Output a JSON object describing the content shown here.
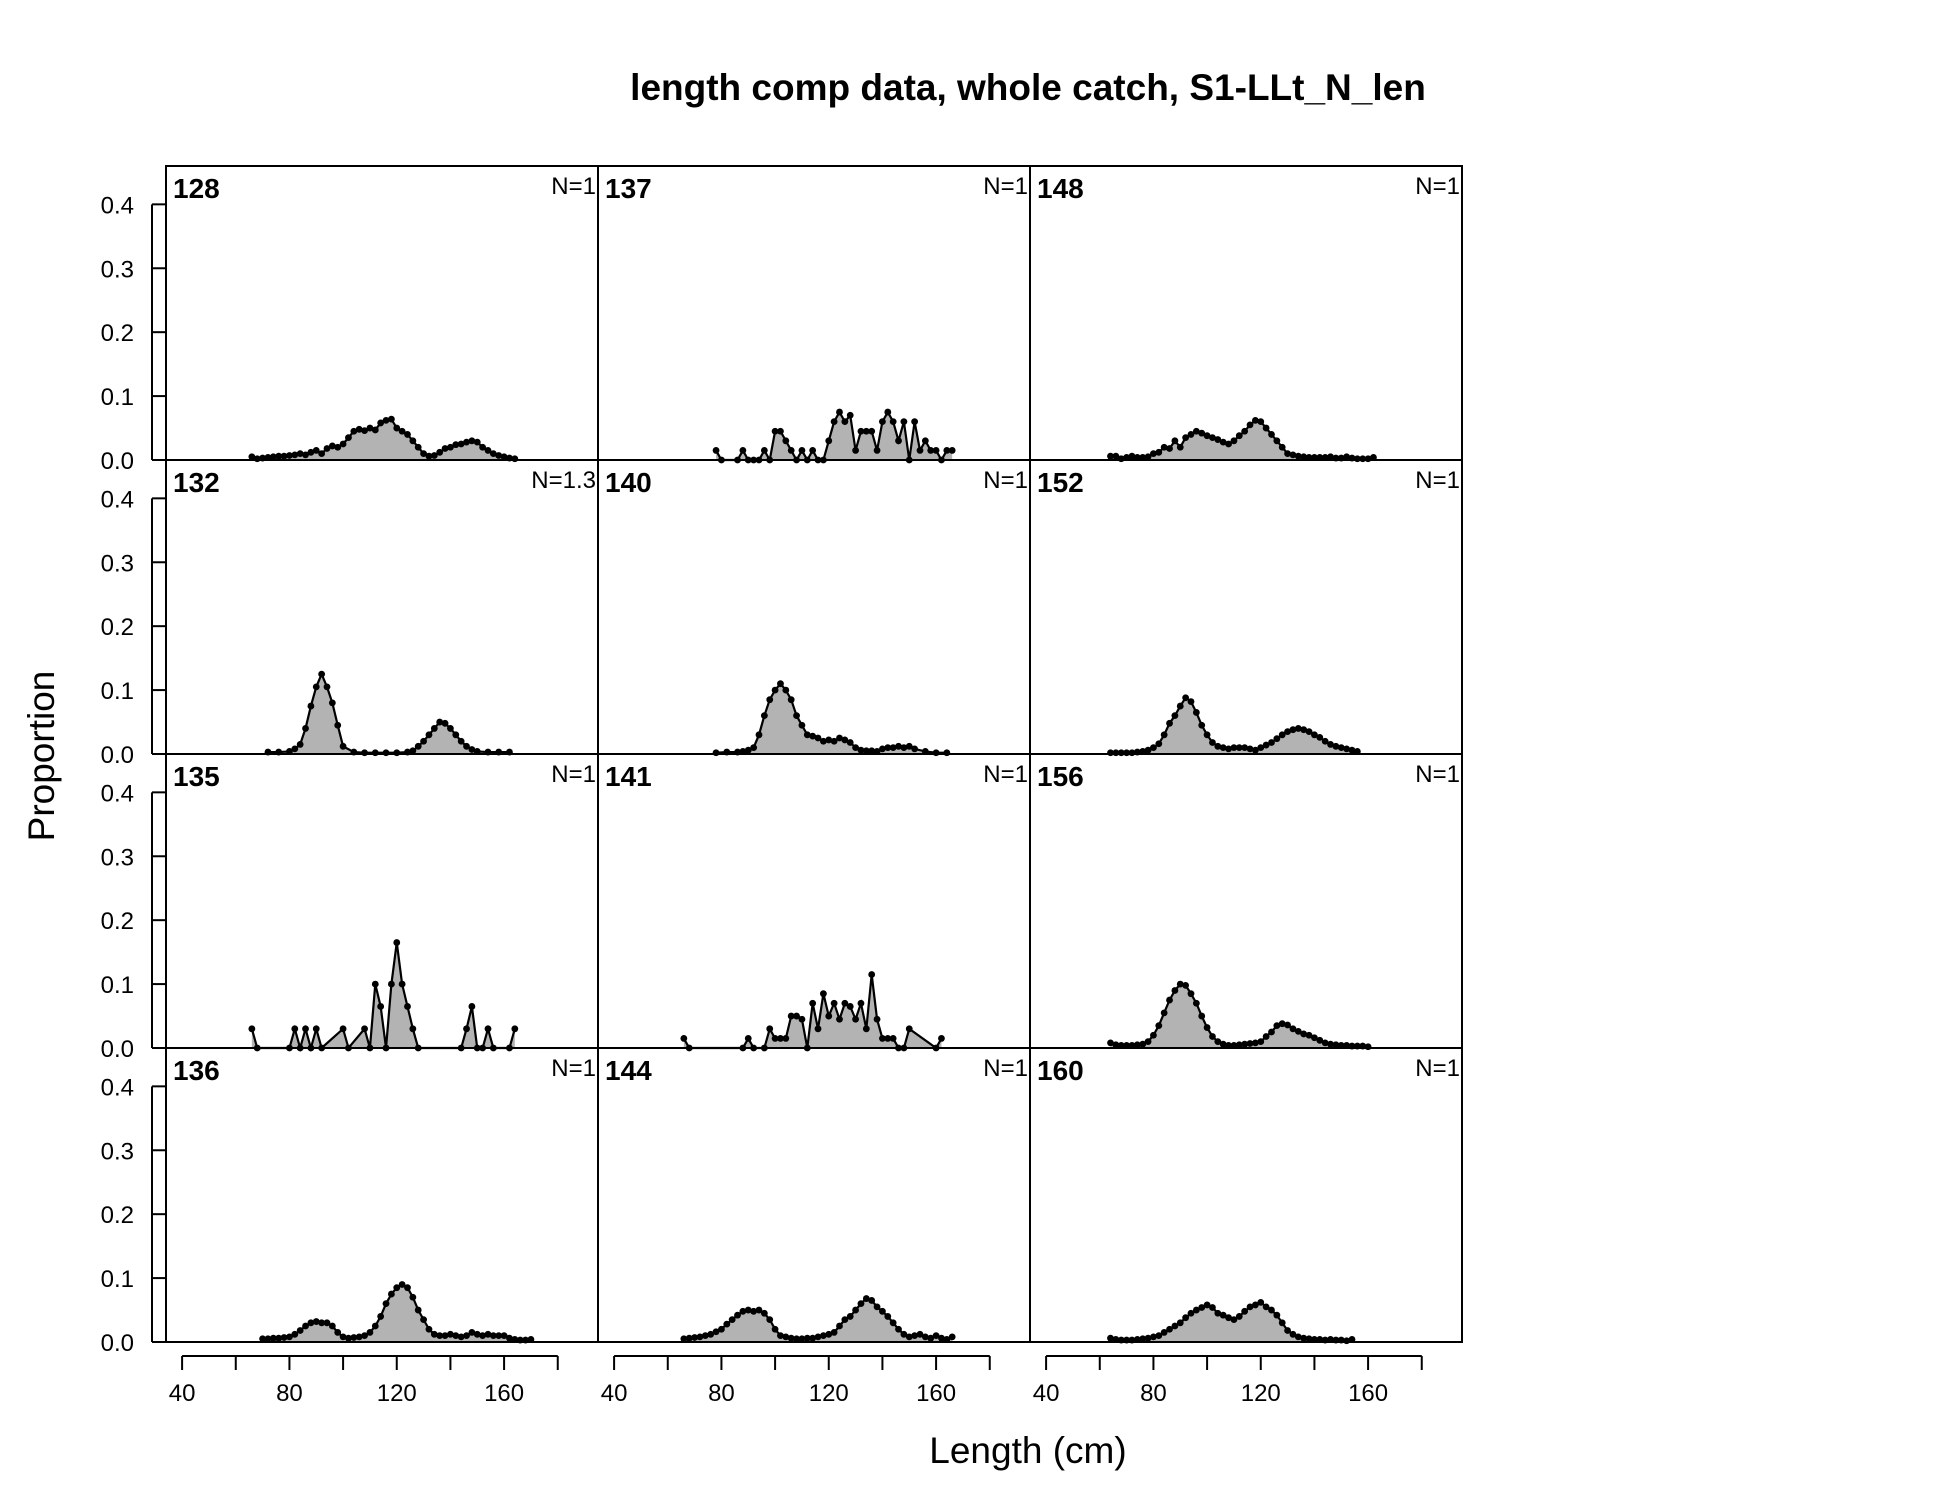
{
  "chart_data": {
    "type": "area",
    "title": "length comp data, whole catch, S1-LLt_N_len",
    "xlabel": "Length (cm)",
    "ylabel": "Proportion",
    "xlim": [
      34,
      195
    ],
    "ylim": [
      0,
      0.46
    ],
    "x_ticks": [
      40,
      60,
      80,
      100,
      120,
      140,
      160,
      180
    ],
    "x_tick_labels": [
      "40",
      "80",
      "120",
      "160"
    ],
    "x_tick_label_values": [
      40,
      80,
      120,
      160
    ],
    "y_ticks": [
      0.0,
      0.1,
      0.2,
      0.3,
      0.4
    ],
    "y_tick_labels": [
      "0.0",
      "0.1",
      "0.2",
      "0.3",
      "0.4"
    ],
    "layout": "4 rows x 3 columns, column-major",
    "fill_color": "#b3b3b3",
    "line_color": "#000000",
    "panels": [
      {
        "label": "128",
        "n": "N=1",
        "x": [
          66,
          68,
          70,
          72,
          74,
          76,
          78,
          80,
          82,
          84,
          86,
          88,
          90,
          92,
          94,
          96,
          98,
          100,
          102,
          104,
          106,
          108,
          110,
          112,
          114,
          116,
          118,
          120,
          122,
          124,
          126,
          128,
          130,
          132,
          134,
          136,
          138,
          140,
          142,
          144,
          146,
          148,
          150,
          152,
          154,
          156,
          158,
          160,
          162,
          164
        ],
        "y": [
          0.005,
          0.002,
          0.003,
          0.004,
          0.005,
          0.006,
          0.006,
          0.007,
          0.008,
          0.01,
          0.008,
          0.012,
          0.015,
          0.01,
          0.018,
          0.022,
          0.02,
          0.025,
          0.035,
          0.045,
          0.048,
          0.046,
          0.05,
          0.047,
          0.058,
          0.062,
          0.064,
          0.05,
          0.045,
          0.04,
          0.03,
          0.02,
          0.01,
          0.006,
          0.007,
          0.012,
          0.018,
          0.02,
          0.024,
          0.025,
          0.028,
          0.03,
          0.028,
          0.02,
          0.015,
          0.01,
          0.007,
          0.005,
          0.003,
          0.002
        ]
      },
      {
        "label": "132",
        "n": "N=1.3",
        "x": [
          72,
          76,
          80,
          82,
          84,
          86,
          88,
          90,
          92,
          94,
          96,
          98,
          100,
          104,
          108,
          112,
          116,
          120,
          124,
          126,
          128,
          130,
          132,
          134,
          136,
          138,
          140,
          142,
          144,
          146,
          148,
          150,
          154,
          158,
          162
        ],
        "y": [
          0.003,
          0.003,
          0.004,
          0.008,
          0.015,
          0.04,
          0.075,
          0.105,
          0.125,
          0.105,
          0.08,
          0.045,
          0.012,
          0.003,
          0.002,
          0.002,
          0.002,
          0.002,
          0.003,
          0.005,
          0.012,
          0.02,
          0.03,
          0.04,
          0.05,
          0.048,
          0.04,
          0.03,
          0.02,
          0.012,
          0.007,
          0.004,
          0.003,
          0.003,
          0.003
        ]
      },
      {
        "label": "135",
        "n": "N=1",
        "x": [
          66,
          68,
          80,
          82,
          84,
          86,
          88,
          90,
          92,
          100,
          102,
          108,
          110,
          112,
          114,
          116,
          118,
          120,
          122,
          124,
          126,
          128,
          144,
          146,
          148,
          150,
          152,
          154,
          156,
          162,
          164
        ],
        "y": [
          0.03,
          0,
          0,
          0.03,
          0,
          0.03,
          0,
          0.03,
          0,
          0.03,
          0,
          0.03,
          0,
          0.1,
          0.065,
          0,
          0.1,
          0.165,
          0.1,
          0.065,
          0.03,
          0,
          0,
          0.03,
          0.065,
          0,
          0,
          0.03,
          0,
          0,
          0.03
        ]
      },
      {
        "label": "136",
        "n": "N=1",
        "x": [
          70,
          72,
          74,
          76,
          78,
          80,
          82,
          84,
          86,
          88,
          90,
          92,
          94,
          96,
          98,
          100,
          102,
          104,
          106,
          108,
          110,
          112,
          114,
          116,
          118,
          120,
          122,
          124,
          126,
          128,
          130,
          132,
          134,
          136,
          138,
          140,
          142,
          144,
          146,
          148,
          150,
          152,
          154,
          156,
          158,
          160,
          162,
          164,
          166,
          168,
          170
        ],
        "y": [
          0.005,
          0.005,
          0.006,
          0.006,
          0.007,
          0.008,
          0.012,
          0.018,
          0.025,
          0.03,
          0.032,
          0.03,
          0.03,
          0.025,
          0.015,
          0.008,
          0.006,
          0.007,
          0.008,
          0.01,
          0.015,
          0.025,
          0.04,
          0.06,
          0.075,
          0.085,
          0.09,
          0.085,
          0.07,
          0.05,
          0.035,
          0.02,
          0.012,
          0.01,
          0.01,
          0.012,
          0.01,
          0.008,
          0.01,
          0.015,
          0.012,
          0.01,
          0.012,
          0.01,
          0.01,
          0.01,
          0.006,
          0.004,
          0.003,
          0.003,
          0.004
        ]
      },
      {
        "label": "137",
        "n": "N=1",
        "x": [
          78,
          80,
          86,
          88,
          90,
          92,
          94,
          96,
          98,
          100,
          102,
          104,
          106,
          108,
          110,
          112,
          114,
          116,
          118,
          120,
          122,
          124,
          126,
          128,
          130,
          132,
          134,
          136,
          138,
          140,
          142,
          144,
          146,
          148,
          150,
          152,
          154,
          156,
          158,
          160,
          162,
          164,
          166
        ],
        "y": [
          0.015,
          0,
          0,
          0.015,
          0,
          0,
          0,
          0.015,
          0,
          0.045,
          0.045,
          0.03,
          0.015,
          0,
          0.015,
          0,
          0.015,
          0,
          0,
          0.03,
          0.06,
          0.075,
          0.06,
          0.07,
          0.015,
          0.045,
          0.045,
          0.045,
          0.015,
          0.06,
          0.075,
          0.06,
          0.03,
          0.06,
          0,
          0.06,
          0.015,
          0.03,
          0.015,
          0.015,
          0,
          0.015,
          0.015
        ]
      },
      {
        "label": "140",
        "n": "N=1",
        "x": [
          78,
          82,
          86,
          88,
          90,
          92,
          94,
          96,
          98,
          100,
          102,
          104,
          106,
          108,
          110,
          112,
          114,
          116,
          118,
          120,
          122,
          124,
          126,
          128,
          130,
          132,
          134,
          136,
          138,
          140,
          142,
          144,
          146,
          148,
          150,
          152,
          156,
          160,
          164
        ],
        "y": [
          0.002,
          0.003,
          0.003,
          0.004,
          0.006,
          0.01,
          0.03,
          0.06,
          0.085,
          0.1,
          0.11,
          0.1,
          0.085,
          0.06,
          0.045,
          0.03,
          0.028,
          0.025,
          0.02,
          0.022,
          0.02,
          0.025,
          0.022,
          0.018,
          0.01,
          0.006,
          0.005,
          0.005,
          0.004,
          0.008,
          0.01,
          0.01,
          0.012,
          0.01,
          0.012,
          0.008,
          0.004,
          0.002,
          0.002
        ]
      },
      {
        "label": "141",
        "n": "N=1",
        "x": [
          66,
          68,
          88,
          90,
          92,
          96,
          98,
          100,
          102,
          104,
          106,
          108,
          110,
          112,
          114,
          116,
          118,
          120,
          122,
          124,
          126,
          128,
          130,
          132,
          134,
          136,
          138,
          140,
          142,
          144,
          146,
          148,
          150,
          160,
          162
        ],
        "y": [
          0.015,
          0,
          0,
          0.015,
          0,
          0,
          0.03,
          0.015,
          0.015,
          0.015,
          0.05,
          0.05,
          0.045,
          0,
          0.07,
          0.03,
          0.085,
          0.05,
          0.07,
          0.045,
          0.07,
          0.065,
          0.045,
          0.07,
          0.03,
          0.115,
          0.045,
          0.015,
          0.015,
          0.015,
          0,
          0,
          0.03,
          0,
          0.015
        ]
      },
      {
        "label": "144",
        "n": "N=1",
        "x": [
          66,
          68,
          70,
          72,
          74,
          76,
          78,
          80,
          82,
          84,
          86,
          88,
          90,
          92,
          94,
          96,
          98,
          100,
          102,
          104,
          106,
          108,
          110,
          112,
          114,
          116,
          118,
          120,
          122,
          124,
          126,
          128,
          130,
          132,
          134,
          136,
          138,
          140,
          142,
          144,
          146,
          148,
          150,
          152,
          154,
          156,
          158,
          160,
          162,
          164,
          166
        ],
        "y": [
          0.005,
          0.006,
          0.007,
          0.008,
          0.01,
          0.012,
          0.016,
          0.02,
          0.028,
          0.035,
          0.042,
          0.048,
          0.05,
          0.048,
          0.05,
          0.045,
          0.035,
          0.02,
          0.01,
          0.008,
          0.006,
          0.005,
          0.005,
          0.006,
          0.006,
          0.008,
          0.01,
          0.012,
          0.015,
          0.025,
          0.035,
          0.04,
          0.05,
          0.06,
          0.068,
          0.065,
          0.055,
          0.048,
          0.04,
          0.03,
          0.02,
          0.012,
          0.008,
          0.01,
          0.012,
          0.008,
          0.006,
          0.01,
          0.006,
          0.004,
          0.008
        ]
      },
      {
        "label": "148",
        "n": "N=1",
        "x": [
          64,
          66,
          68,
          70,
          72,
          74,
          76,
          78,
          80,
          82,
          84,
          86,
          88,
          90,
          92,
          94,
          96,
          98,
          100,
          102,
          104,
          106,
          108,
          110,
          112,
          114,
          116,
          118,
          120,
          122,
          124,
          126,
          128,
          130,
          132,
          134,
          136,
          138,
          140,
          142,
          144,
          146,
          148,
          150,
          152,
          154,
          156,
          158,
          160,
          162
        ],
        "y": [
          0.006,
          0.006,
          0.002,
          0.004,
          0.006,
          0.004,
          0.004,
          0.005,
          0.01,
          0.012,
          0.02,
          0.018,
          0.03,
          0.02,
          0.035,
          0.04,
          0.045,
          0.042,
          0.038,
          0.035,
          0.032,
          0.028,
          0.025,
          0.03,
          0.038,
          0.045,
          0.055,
          0.062,
          0.06,
          0.05,
          0.04,
          0.03,
          0.02,
          0.01,
          0.008,
          0.006,
          0.005,
          0.004,
          0.004,
          0.004,
          0.004,
          0.005,
          0.003,
          0.003,
          0.005,
          0.003,
          0.002,
          0.002,
          0.002,
          0.004
        ]
      },
      {
        "label": "152",
        "n": "N=1",
        "x": [
          64,
          66,
          68,
          70,
          72,
          74,
          76,
          78,
          80,
          82,
          84,
          86,
          88,
          90,
          92,
          94,
          96,
          98,
          100,
          102,
          104,
          106,
          108,
          110,
          112,
          114,
          116,
          118,
          120,
          122,
          124,
          126,
          128,
          130,
          132,
          134,
          136,
          138,
          140,
          142,
          144,
          146,
          148,
          150,
          152,
          154,
          156
        ],
        "y": [
          0.002,
          0.002,
          0.002,
          0.002,
          0.002,
          0.003,
          0.004,
          0.006,
          0.01,
          0.016,
          0.03,
          0.048,
          0.06,
          0.075,
          0.088,
          0.082,
          0.065,
          0.045,
          0.03,
          0.018,
          0.012,
          0.01,
          0.008,
          0.01,
          0.01,
          0.01,
          0.008,
          0.006,
          0.01,
          0.014,
          0.018,
          0.024,
          0.03,
          0.035,
          0.038,
          0.04,
          0.038,
          0.035,
          0.03,
          0.026,
          0.02,
          0.015,
          0.012,
          0.01,
          0.008,
          0.006,
          0.004
        ]
      },
      {
        "label": "156",
        "n": "N=1",
        "x": [
          64,
          66,
          68,
          70,
          72,
          74,
          76,
          78,
          80,
          82,
          84,
          86,
          88,
          90,
          92,
          94,
          96,
          98,
          100,
          102,
          104,
          106,
          108,
          110,
          112,
          114,
          116,
          118,
          120,
          122,
          124,
          126,
          128,
          130,
          132,
          134,
          136,
          138,
          140,
          142,
          144,
          146,
          148,
          150,
          152,
          154,
          156,
          158,
          160
        ],
        "y": [
          0.008,
          0.005,
          0.004,
          0.004,
          0.004,
          0.005,
          0.006,
          0.01,
          0.02,
          0.035,
          0.055,
          0.075,
          0.09,
          0.1,
          0.098,
          0.085,
          0.07,
          0.05,
          0.032,
          0.018,
          0.01,
          0.006,
          0.004,
          0.004,
          0.005,
          0.006,
          0.007,
          0.008,
          0.01,
          0.018,
          0.025,
          0.035,
          0.038,
          0.036,
          0.03,
          0.026,
          0.022,
          0.02,
          0.016,
          0.012,
          0.008,
          0.006,
          0.005,
          0.004,
          0.004,
          0.003,
          0.003,
          0.003,
          0.002
        ]
      },
      {
        "label": "160",
        "n": "N=1",
        "x": [
          64,
          66,
          68,
          70,
          72,
          74,
          76,
          78,
          80,
          82,
          84,
          86,
          88,
          90,
          92,
          94,
          96,
          98,
          100,
          102,
          104,
          106,
          108,
          110,
          112,
          114,
          116,
          118,
          120,
          122,
          124,
          126,
          128,
          130,
          132,
          134,
          136,
          138,
          140,
          142,
          144,
          146,
          148,
          150,
          152,
          154
        ],
        "y": [
          0.006,
          0.004,
          0.003,
          0.003,
          0.003,
          0.004,
          0.005,
          0.006,
          0.008,
          0.01,
          0.015,
          0.02,
          0.025,
          0.03,
          0.038,
          0.045,
          0.05,
          0.054,
          0.058,
          0.054,
          0.045,
          0.042,
          0.038,
          0.035,
          0.04,
          0.048,
          0.055,
          0.058,
          0.062,
          0.055,
          0.05,
          0.042,
          0.03,
          0.018,
          0.012,
          0.008,
          0.006,
          0.005,
          0.004,
          0.004,
          0.003,
          0.004,
          0.003,
          0.003,
          0.002,
          0.004
        ]
      }
    ]
  }
}
